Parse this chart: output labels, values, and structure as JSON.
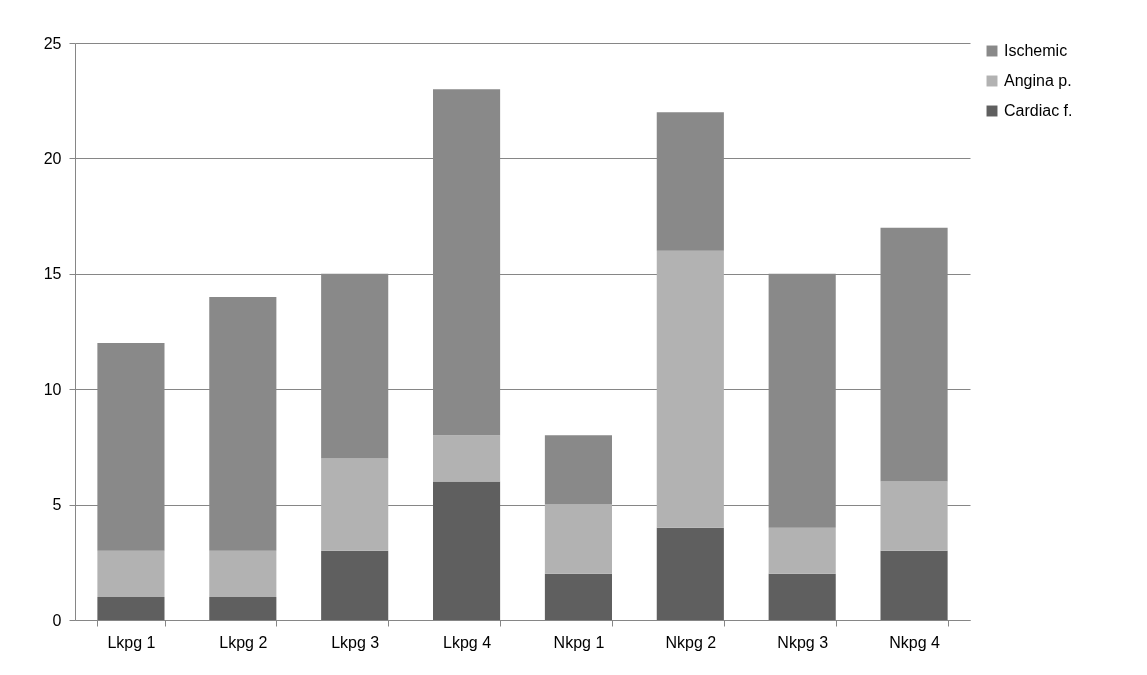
{
  "chart_data": {
    "type": "bar",
    "stacked": true,
    "categories": [
      "Lkpg 1",
      "Lkpg 2",
      "Lkpg 3",
      "Lkpg 4",
      "Nkpg 1",
      "Nkpg 2",
      "Nkpg 3",
      "Nkpg 4"
    ],
    "series": [
      {
        "name": "Cardiac f.",
        "color": "#5f5f5f",
        "values": [
          1,
          1,
          3,
          6,
          2,
          4,
          2,
          3
        ]
      },
      {
        "name": "Angina p.",
        "color": "#b2b2b2",
        "values": [
          2,
          2,
          4,
          2,
          3,
          12,
          2,
          3
        ]
      },
      {
        "name": "Ischemic",
        "color": "#898989",
        "values": [
          9,
          11,
          8,
          15,
          3,
          6,
          11,
          11
        ]
      }
    ],
    "ylim": [
      0,
      25
    ],
    "yticks": [
      0,
      5,
      10,
      15,
      20,
      25
    ],
    "grid": "y",
    "legend": "right"
  }
}
